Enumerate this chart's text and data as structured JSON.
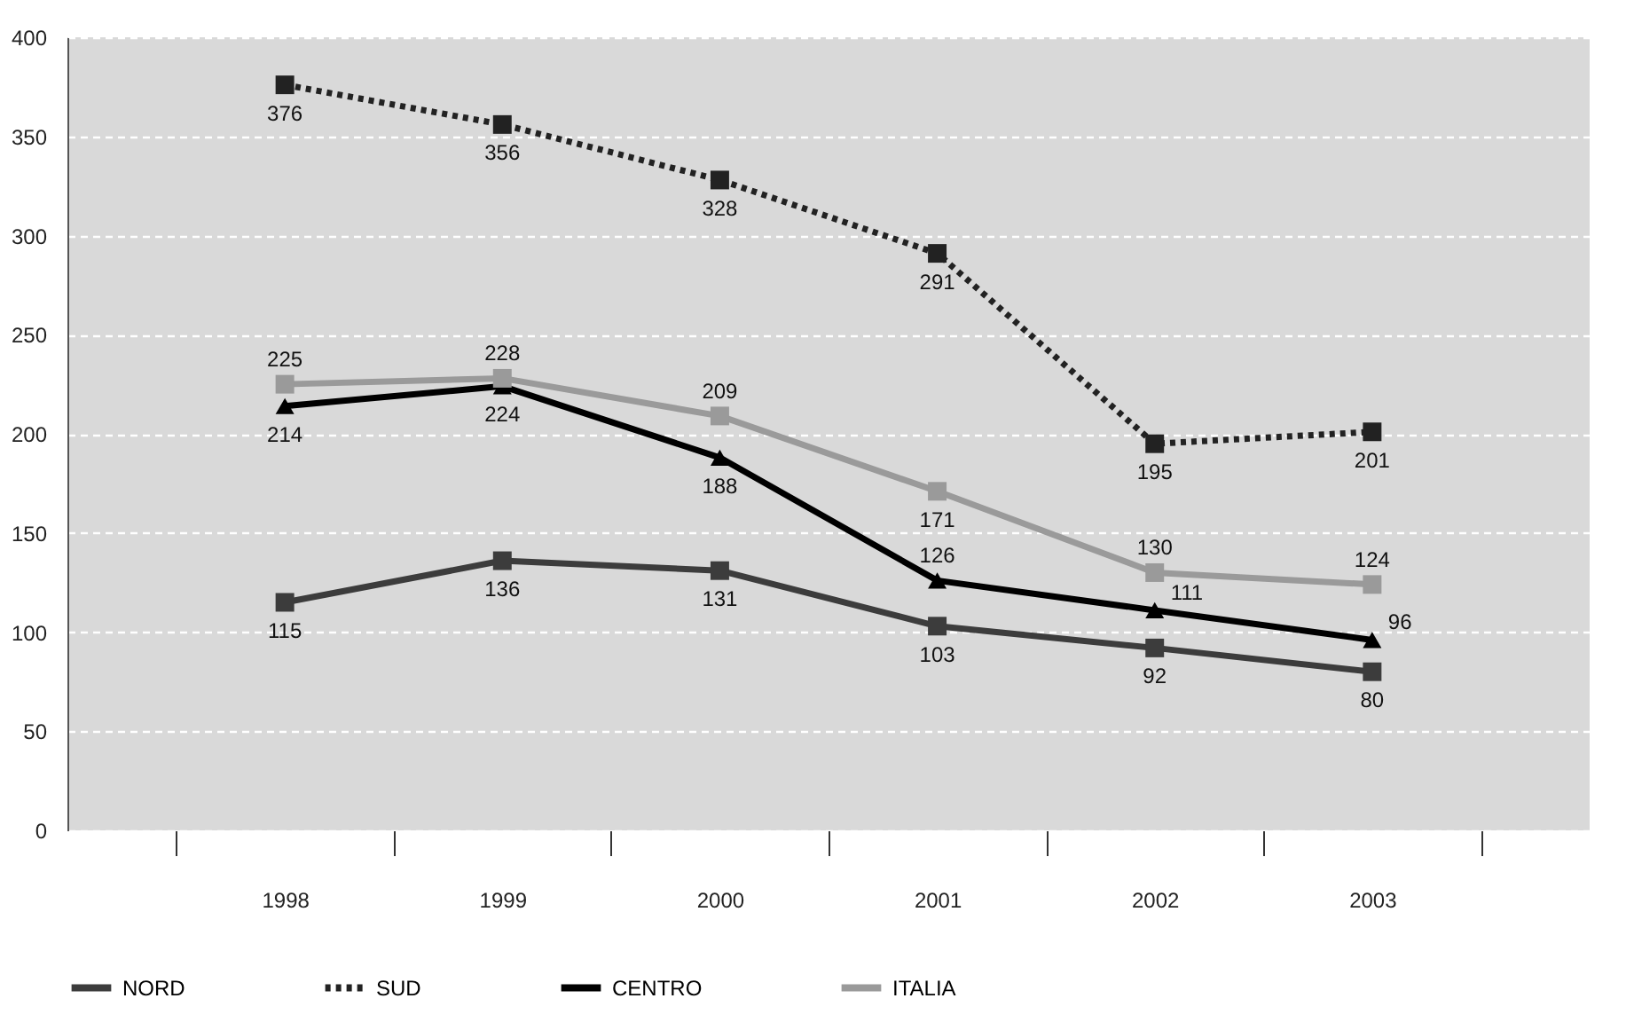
{
  "chart_data": {
    "type": "line",
    "categories": [
      "1998",
      "1999",
      "2000",
      "2001",
      "2002",
      "2003"
    ],
    "series": [
      {
        "name": "NORD",
        "color": "#3c3c3c",
        "marker": "square",
        "line_style": "solid",
        "values": [
          115,
          136,
          131,
          103,
          92,
          80
        ]
      },
      {
        "name": "SUD",
        "color": "#222222",
        "marker": "square",
        "line_style": "dotted",
        "values": [
          376,
          356,
          328,
          291,
          195,
          201
        ]
      },
      {
        "name": "CENTRO",
        "color": "#000000",
        "marker": "triangle",
        "line_style": "solid",
        "values": [
          214,
          224,
          188,
          126,
          111,
          96
        ]
      },
      {
        "name": "ITALIA",
        "color": "#9a9a9a",
        "marker": "square",
        "line_style": "solid",
        "values": [
          225,
          228,
          209,
          171,
          130,
          124
        ]
      }
    ],
    "ylim": [
      0,
      400
    ],
    "yticks": [
      0,
      50,
      100,
      150,
      200,
      250,
      300,
      350,
      400
    ],
    "grid": "y",
    "legend": "bottom",
    "data_labels": true
  }
}
